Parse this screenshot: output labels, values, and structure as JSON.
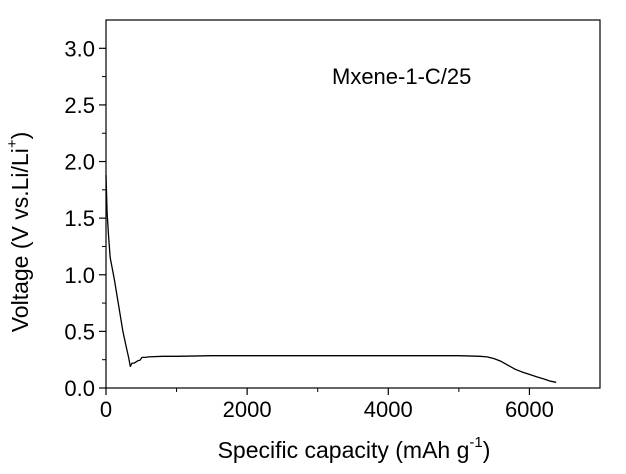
{
  "chart_data": {
    "type": "line",
    "annotation": "Mxene-1-C/25",
    "xlabel": {
      "main": "Specific capacity (mAh g",
      "sup": "-1",
      "tail": ")"
    },
    "ylabel": {
      "main": "Voltage (V vs.Li/Li",
      "sup": "+",
      "tail": ")"
    },
    "xlim": [
      0,
      7000
    ],
    "ylim": [
      0,
      3.25
    ],
    "xticks": [
      0,
      2000,
      4000,
      6000
    ],
    "xtick_labels": [
      "0",
      "2000",
      "4000",
      "6000"
    ],
    "yticks": [
      0.0,
      0.5,
      1.0,
      1.5,
      2.0,
      2.5,
      3.0
    ],
    "ytick_labels": [
      "0.0",
      "0.5",
      "1.0",
      "1.5",
      "2.0",
      "2.5",
      "3.0"
    ],
    "grid": false,
    "legend": "none",
    "series": [
      {
        "color": "#000000",
        "x": [
          0,
          15,
          35,
          60,
          90,
          120,
          160,
          200,
          240,
          280,
          320,
          345,
          370,
          400,
          450,
          480,
          510,
          560,
          600,
          800,
          1000,
          1500,
          2000,
          3000,
          4000,
          5000,
          5300,
          5400,
          5500,
          5600,
          5700,
          5800,
          5900,
          6000,
          6100,
          6200,
          6300,
          6380
        ],
        "y": [
          1.88,
          1.55,
          1.35,
          1.15,
          1.05,
          0.95,
          0.8,
          0.65,
          0.5,
          0.38,
          0.27,
          0.19,
          0.22,
          0.22,
          0.24,
          0.245,
          0.27,
          0.27,
          0.275,
          0.28,
          0.28,
          0.285,
          0.285,
          0.285,
          0.285,
          0.285,
          0.28,
          0.275,
          0.26,
          0.235,
          0.2,
          0.165,
          0.14,
          0.12,
          0.1,
          0.08,
          0.06,
          0.05
        ]
      }
    ]
  }
}
